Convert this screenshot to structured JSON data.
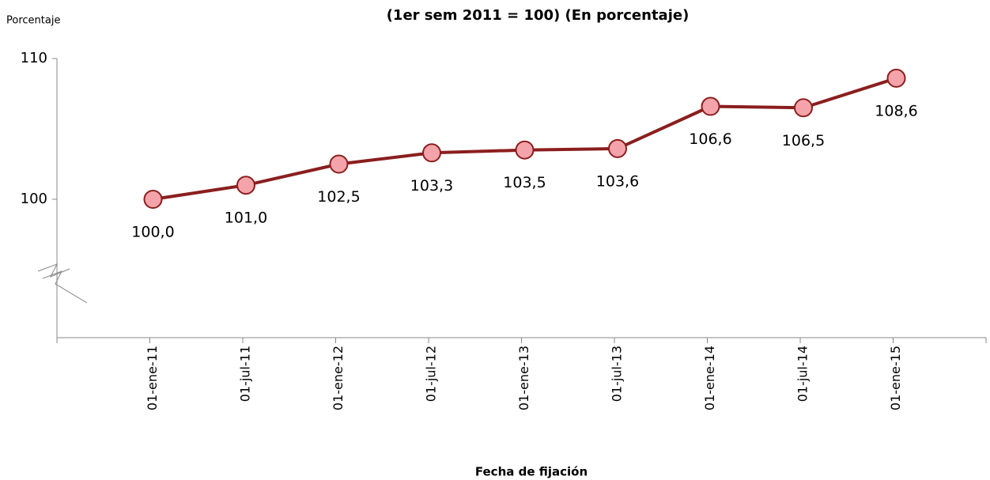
{
  "chart_data": {
    "type": "line",
    "title": "(1er sem 2011 = 100) (En porcentaje)",
    "y_label": "Porcentaje",
    "x_label": "Fecha de fijación",
    "categories": [
      "01-ene-11",
      "01-jul-11",
      "01-ene-12",
      "01-jul-12",
      "01-ene-13",
      "01-jul-13",
      "01-ene-14",
      "01-jul-14",
      "01-ene-15"
    ],
    "series": [
      {
        "name": "Porcentaje",
        "color": "#8b1e1e",
        "marker_color": "#f4a3aa",
        "values": [
          100.0,
          101.0,
          102.5,
          103.3,
          103.5,
          103.6,
          106.6,
          106.5,
          108.6
        ],
        "value_labels": [
          "100,0",
          "101,0",
          "102,5",
          "103,3",
          "103,5",
          "103,6",
          "106,6",
          "106,5",
          "108,6"
        ]
      }
    ],
    "ylim": [
      90,
      110
    ],
    "yticks": [
      100,
      110
    ]
  }
}
